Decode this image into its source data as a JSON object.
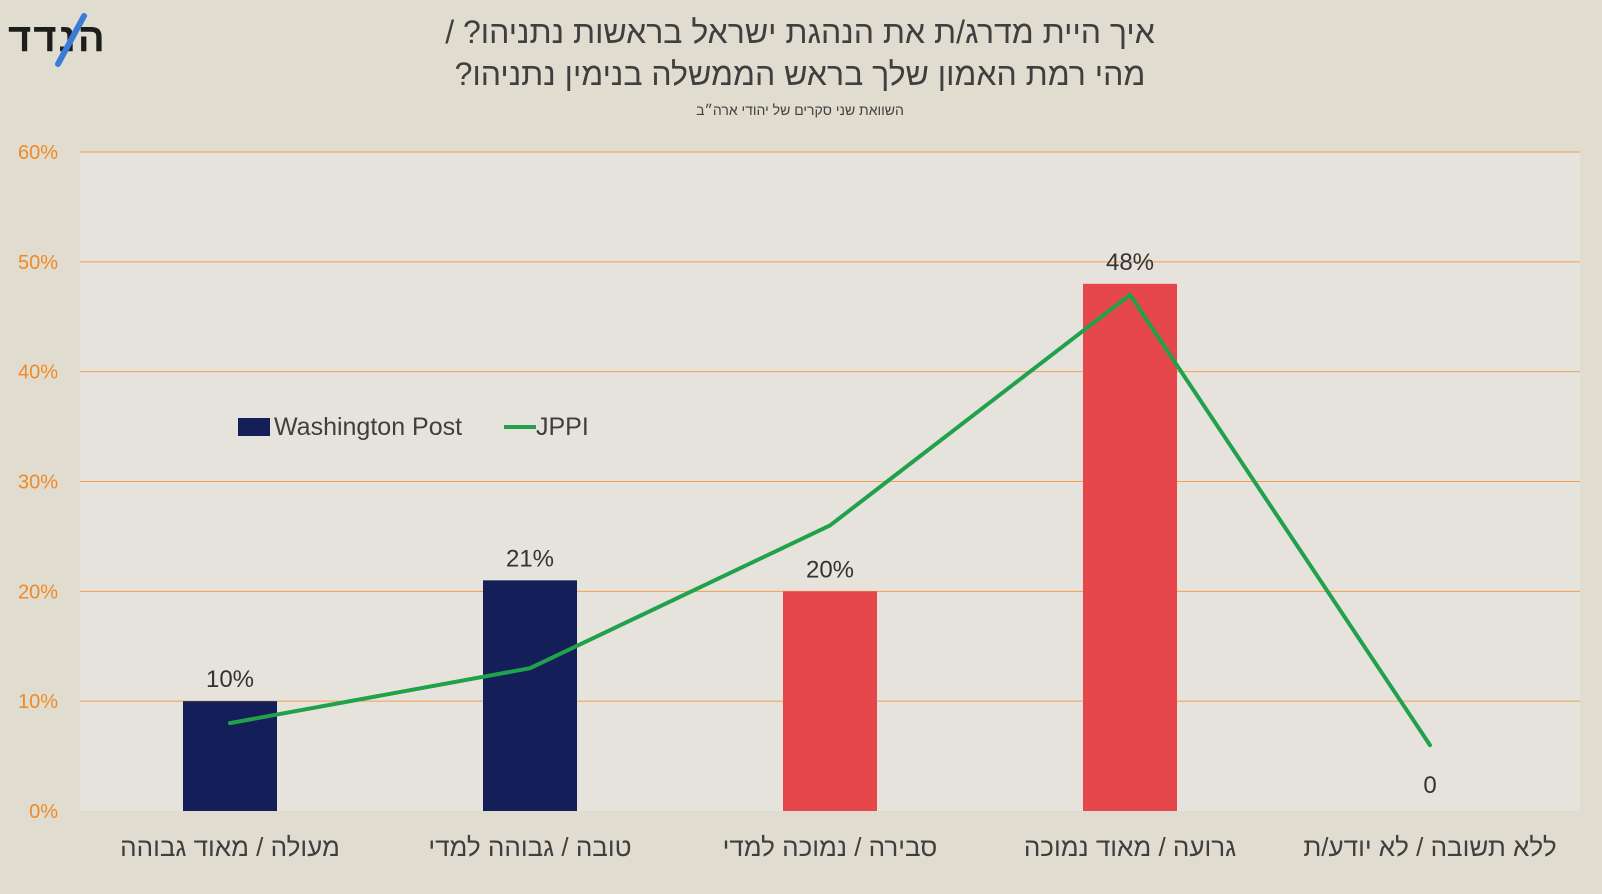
{
  "logo": {
    "text": "הנדד"
  },
  "chart_data": {
    "type": "bar",
    "title_line1": "איך היית מדרג/ת את הנהגת ישראל בראשות נתניהו? /",
    "title_line2": "מהי רמת האמון שלך בראש הממשלה בנימין נתניהו?",
    "subtitle": "השוואת שני סקרים של יהודי ארה״ב",
    "categories": [
      "מעולה / מאוד גבוהה",
      "טובה / גבוהה למדי",
      "סבירה / נמוכה למדי",
      "גרועה / מאוד נמוכה",
      "ללא תשובה / לא יודע/ת"
    ],
    "ylim": [
      0,
      60
    ],
    "yticks": [
      "0%",
      "10%",
      "20%",
      "30%",
      "40%",
      "50%",
      "60%"
    ],
    "series": [
      {
        "name": "Washington Post",
        "type": "bar",
        "values": [
          10,
          21,
          20,
          48,
          0
        ],
        "labels": [
          "10%",
          "21%",
          "20%",
          "48%",
          "0"
        ]
      },
      {
        "name": "JPPI",
        "type": "line",
        "values": [
          8,
          13,
          26,
          47,
          6
        ],
        "color": "#22a14b"
      }
    ],
    "bar_colors": [
      "#141f5a",
      "#141f5a",
      "#e6474b",
      "#e6474b",
      "#e6474b"
    ],
    "legend_position": "upper-left",
    "colors": {
      "background": "#e0ddd0",
      "plot_background": "#e6e3dc",
      "grid": "#f0a050",
      "tick_text": "#ef8a25",
      "title_text": "#3f3f3f",
      "line": "#22a14b",
      "logo_blue": "#3a7bd5"
    }
  }
}
